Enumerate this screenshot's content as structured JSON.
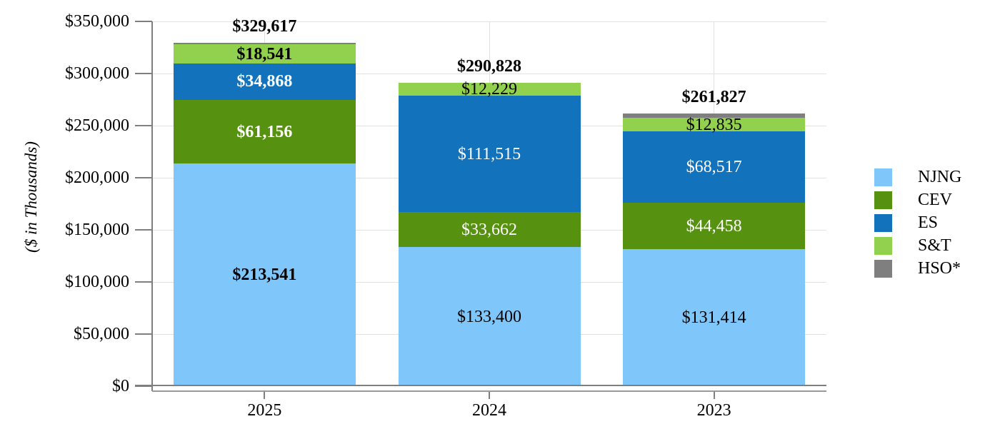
{
  "chart_data": {
    "type": "bar",
    "stacked": true,
    "title": "",
    "xlabel": "",
    "ylabel": "($ in Thousands)",
    "ylim": [
      0,
      350000
    ],
    "ytick_step": 50000,
    "ytick_labels": [
      "$0",
      "$50,000",
      "$100,000",
      "$150,000",
      "$200,000",
      "$250,000",
      "$300,000",
      "$350,000"
    ],
    "grid": true,
    "legend_position": "right",
    "categories": [
      "2025",
      "2024",
      "2023"
    ],
    "totals": [
      329617,
      290828,
      261827
    ],
    "total_labels": [
      "$329,617",
      "$290,828",
      "$261,827"
    ],
    "category_label_weights": [
      "bold",
      "normal",
      "normal"
    ],
    "series": [
      {
        "name": "NJNG",
        "color": "#7fc6fb",
        "label_color": "#000000",
        "values": [
          213541,
          133400,
          131414
        ],
        "labels": [
          "$213,541",
          "$133,400",
          "$131,414"
        ]
      },
      {
        "name": "CEV",
        "color": "#569110",
        "label_color": "#ffffff",
        "values": [
          61156,
          33662,
          44458
        ],
        "labels": [
          "$61,156",
          "$33,662",
          "$44,458"
        ]
      },
      {
        "name": "ES",
        "color": "#1272bc",
        "label_color": "#ffffff",
        "values": [
          34868,
          111515,
          68517
        ],
        "labels": [
          "$34,868",
          "$111,515",
          "$68,517"
        ]
      },
      {
        "name": "S&T",
        "color": "#92d14e",
        "label_color": "#000000",
        "values": [
          18541,
          12229,
          12835
        ],
        "labels": [
          "$18,541",
          "$12,229",
          "$12,835"
        ]
      },
      {
        "name": "HSO*",
        "color": "#7f7f7f",
        "label_color": "#000000",
        "values": [
          1511,
          22,
          4603
        ],
        "labels": [
          "",
          "",
          ""
        ]
      }
    ],
    "legend": [
      "NJNG",
      "CEV",
      "ES",
      "S&T",
      "HSO*"
    ]
  }
}
